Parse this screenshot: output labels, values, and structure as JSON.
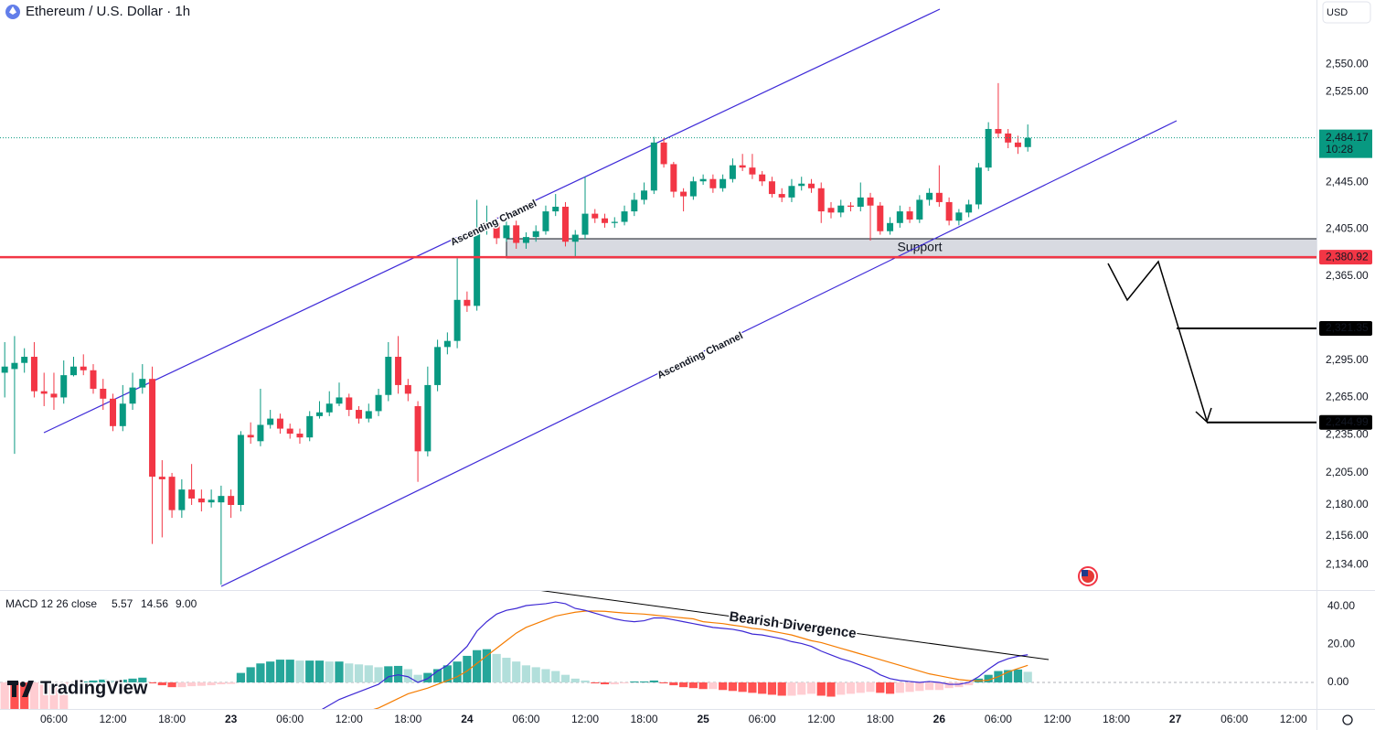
{
  "header": {
    "title": "Ethereum / U.S. Dollar · 1h",
    "currency": "USD"
  },
  "branding": "TradingView",
  "chart_data": [
    {
      "type": "candlestick",
      "log": true,
      "up_color": "#089981",
      "down_color": "#f23645",
      "xlim": [
        0.52,
        134.35
      ],
      "ylim": [
        2115,
        2609
      ],
      "xticks": [
        {
          "value": 6,
          "label": "06:00"
        },
        {
          "value": 12,
          "label": "12:00"
        },
        {
          "value": 18,
          "label": "18:00"
        },
        {
          "value": 24,
          "label": "23"
        },
        {
          "value": 30,
          "label": "06:00"
        },
        {
          "value": 36,
          "label": "12:00"
        },
        {
          "value": 42,
          "label": "18:00"
        },
        {
          "value": 48,
          "label": "24"
        },
        {
          "value": 54,
          "label": "06:00"
        },
        {
          "value": 60,
          "label": "12:00"
        },
        {
          "value": 66,
          "label": "18:00"
        },
        {
          "value": 72,
          "label": "25"
        },
        {
          "value": 78,
          "label": "06:00"
        },
        {
          "value": 84,
          "label": "12:00"
        },
        {
          "value": 90,
          "label": "18:00"
        },
        {
          "value": 96,
          "label": "26"
        },
        {
          "value": 102,
          "label": "06:00"
        },
        {
          "value": 108,
          "label": "12:00"
        },
        {
          "value": 114,
          "label": "18:00"
        },
        {
          "value": 120,
          "label": "27"
        },
        {
          "value": 126,
          "label": "06:00"
        },
        {
          "value": 132,
          "label": "12:00"
        }
      ],
      "yticks": [
        {
          "value": 2550,
          "label": "2,550.00"
        },
        {
          "value": 2525,
          "label": "2,525.00"
        },
        {
          "value": 2445,
          "label": "2,445.00"
        },
        {
          "value": 2405,
          "label": "2,405.00"
        },
        {
          "value": 2365,
          "label": "2,365.00"
        },
        {
          "value": 2295,
          "label": "2,295.00"
        },
        {
          "value": 2265,
          "label": "2,265.00"
        },
        {
          "value": 2235,
          "label": "2,235.00"
        },
        {
          "value": 2205,
          "label": "2,205.00"
        },
        {
          "value": 2180,
          "label": "2,180.00"
        },
        {
          "value": 2156,
          "label": "2,156.00"
        },
        {
          "value": 2134,
          "label": "2,134.00"
        }
      ],
      "x": [
        1,
        2,
        3,
        4,
        5,
        6,
        7,
        8,
        9,
        10,
        11,
        12,
        13,
        14,
        15,
        16,
        17,
        18,
        19,
        20,
        21,
        22,
        23,
        24,
        25,
        26,
        27,
        28,
        29,
        30,
        31,
        32,
        33,
        34,
        35,
        36,
        37,
        38,
        39,
        40,
        41,
        42,
        43,
        44,
        45,
        46,
        47,
        48,
        49,
        50,
        51,
        52,
        53,
        54,
        55,
        56,
        57,
        58,
        59,
        60,
        61,
        62,
        63,
        64,
        65,
        66,
        67,
        68,
        69,
        70,
        71,
        72,
        73,
        74,
        75,
        76,
        77,
        78,
        79,
        80,
        81,
        82,
        83,
        84,
        85,
        86,
        87,
        88,
        89,
        90,
        91,
        92,
        93,
        94,
        95,
        96,
        97,
        98,
        99,
        100,
        101,
        102,
        103,
        104,
        105
      ],
      "open": [
        2285,
        2288,
        2293,
        2298,
        2270,
        2268,
        2265,
        2283,
        2290,
        2287,
        2272,
        2264,
        2242,
        2260,
        2273,
        2280,
        2202,
        2202,
        2176,
        2192,
        2185,
        2182,
        2182,
        2187,
        2180,
        2235,
        2230,
        2243,
        2248,
        2240,
        2236,
        2233,
        2250,
        2253,
        2260,
        2265,
        2255,
        2248,
        2254,
        2267,
        2298,
        2275,
        2258,
        2222,
        2275,
        2306,
        2311,
        2345,
        2340,
        2405,
        2410,
        2397,
        2408,
        2393,
        2398,
        2403,
        2420,
        2424,
        2394,
        2400,
        2418,
        2414,
        2410,
        2411,
        2420,
        2430,
        2438,
        2480,
        2461,
        2437,
        2433,
        2446,
        2448,
        2440,
        2448,
        2460,
        2458,
        2452,
        2446,
        2435,
        2432,
        2442,
        2444,
        2440,
        2423,
        2419,
        2425,
        2424,
        2432,
        2425,
        2403,
        2410,
        2420,
        2413,
        2430,
        2436,
        2428,
        2412,
        2419,
        2426,
        2458,
        2492,
        2488,
        2480,
        2476
      ],
      "high": [
        2310,
        2315,
        2305,
        2310,
        2285,
        2285,
        2295,
        2298,
        2300,
        2292,
        2280,
        2268,
        2275,
        2285,
        2292,
        2290,
        2215,
        2205,
        2200,
        2212,
        2192,
        2192,
        2195,
        2192,
        2238,
        2245,
        2272,
        2255,
        2252,
        2244,
        2240,
        2254,
        2262,
        2270,
        2277,
        2268,
        2258,
        2260,
        2272,
        2310,
        2315,
        2280,
        2262,
        2290,
        2312,
        2318,
        2380,
        2352,
        2430,
        2425,
        2415,
        2418,
        2412,
        2402,
        2408,
        2425,
        2435,
        2428,
        2404,
        2450,
        2422,
        2418,
        2415,
        2425,
        2436,
        2445,
        2485,
        2484,
        2463,
        2440,
        2450,
        2452,
        2452,
        2452,
        2466,
        2470,
        2470,
        2455,
        2450,
        2440,
        2448,
        2450,
        2448,
        2445,
        2428,
        2430,
        2428,
        2445,
        2436,
        2428,
        2415,
        2425,
        2424,
        2434,
        2440,
        2460,
        2432,
        2422,
        2430,
        2462,
        2498,
        2533,
        2492,
        2486,
        2496
      ],
      "low": [
        2265,
        2220,
        2285,
        2265,
        2258,
        2255,
        2260,
        2282,
        2283,
        2268,
        2255,
        2238,
        2238,
        2255,
        2268,
        2150,
        2155,
        2170,
        2170,
        2180,
        2175,
        2178,
        2119,
        2170,
        2175,
        2228,
        2226,
        2240,
        2236,
        2232,
        2228,
        2230,
        2248,
        2250,
        2258,
        2250,
        2244,
        2245,
        2250,
        2262,
        2268,
        2262,
        2198,
        2218,
        2270,
        2300,
        2305,
        2335,
        2336,
        2400,
        2392,
        2394,
        2388,
        2388,
        2394,
        2400,
        2416,
        2390,
        2380,
        2396,
        2410,
        2406,
        2406,
        2408,
        2416,
        2426,
        2435,
        2458,
        2432,
        2420,
        2430,
        2443,
        2436,
        2437,
        2445,
        2455,
        2448,
        2442,
        2432,
        2428,
        2428,
        2438,
        2436,
        2410,
        2414,
        2415,
        2420,
        2420,
        2395,
        2400,
        2400,
        2406,
        2410,
        2410,
        2425,
        2424,
        2408,
        2408,
        2415,
        2422,
        2455,
        2484,
        2475,
        2470,
        2472
      ],
      "close": [
        2290,
        2293,
        2298,
        2270,
        2268,
        2265,
        2283,
        2290,
        2287,
        2272,
        2264,
        2242,
        2260,
        2273,
        2280,
        2202,
        2200,
        2176,
        2192,
        2185,
        2182,
        2184,
        2187,
        2180,
        2235,
        2233,
        2243,
        2248,
        2240,
        2236,
        2233,
        2250,
        2253,
        2260,
        2265,
        2255,
        2248,
        2254,
        2267,
        2298,
        2275,
        2268,
        2222,
        2275,
        2306,
        2311,
        2345,
        2340,
        2405,
        2410,
        2397,
        2408,
        2393,
        2398,
        2403,
        2420,
        2424,
        2394,
        2400,
        2418,
        2414,
        2410,
        2411,
        2420,
        2430,
        2438,
        2480,
        2461,
        2437,
        2433,
        2446,
        2448,
        2440,
        2448,
        2460,
        2458,
        2452,
        2446,
        2435,
        2432,
        2442,
        2444,
        2440,
        2420,
        2419,
        2425,
        2424,
        2432,
        2425,
        2403,
        2410,
        2420,
        2413,
        2430,
        2436,
        2428,
        2412,
        2419,
        2426,
        2458,
        2492,
        2488,
        2480,
        2476,
        2484.17
      ],
      "last_price": {
        "value": 2484.17,
        "label": "2,484.17",
        "countdown": "10:28",
        "color": "#089981"
      },
      "levels": [
        {
          "value": 2380.92,
          "label": "2,380.92",
          "color": "#f23645"
        },
        {
          "value": 2321.35,
          "label": "2,321.35",
          "color": "#000000"
        },
        {
          "value": 2244.99,
          "label": "2,244.99",
          "color": "#000000"
        }
      ],
      "annotations": [
        "Ascending Channel",
        "Ascending Channel",
        "Support"
      ]
    },
    {
      "type": "macd",
      "title": "MACD 12 26 close",
      "legend_values": [
        "5.57",
        "14.56",
        "9.00"
      ],
      "ylim": [
        -14,
        48.7
      ],
      "yticks": [
        {
          "value": 40,
          "label": "40.00"
        },
        {
          "value": 20,
          "label": "20.00"
        },
        {
          "value": 0,
          "label": "0.00"
        }
      ],
      "histogram": {
        "colors": {
          "rising_above": "#26a69a",
          "falling_above": "#b2dfdb",
          "falling_below": "#ff5252",
          "rising_below": "#ffcdd2"
        },
        "values": [
          -16,
          -17,
          -18,
          -17,
          -16,
          -15,
          -14,
          -1,
          0.5,
          1,
          1.5,
          1,
          1.5,
          2,
          2.5,
          -0.5,
          -1.5,
          -2.5,
          -2.5,
          -2,
          -1.8,
          -1.5,
          -1,
          -0.8,
          5,
          8,
          10,
          11,
          12,
          12,
          11.5,
          11.5,
          11.5,
          11,
          11,
          10,
          9.5,
          9,
          8,
          8.5,
          8.7,
          7,
          4,
          5,
          7,
          9,
          11,
          14,
          17,
          17.5,
          15,
          13,
          11,
          9,
          8,
          7,
          6,
          4,
          2,
          1,
          -0.5,
          -1,
          -1,
          -0.5,
          0.5,
          0.5,
          1,
          -0.5,
          -1.5,
          -2.5,
          -3,
          -3.5,
          -3.5,
          -4,
          -4.5,
          -5,
          -5.5,
          -6,
          -6.5,
          -7,
          -7,
          -6.5,
          -6,
          -7,
          -7.5,
          -6.5,
          -6,
          -5.5,
          -5,
          -5.5,
          -6,
          -5.5,
          -5,
          -4.5,
          -4,
          -4,
          -3,
          -2.5,
          -1.5,
          2,
          4,
          6,
          6.5,
          6.8,
          5.57
        ]
      },
      "macd_line": {
        "color": "#3d28d4",
        "values": [
          -18,
          -19,
          -20,
          -21,
          -21,
          -22,
          -22,
          -21,
          -21,
          -21,
          -22,
          -23,
          -23,
          -22,
          -21,
          -25,
          -29,
          -32,
          -33,
          -34,
          -35,
          -35,
          -35,
          -35,
          -32,
          -30,
          -27,
          -25,
          -23,
          -21,
          -19,
          -17,
          -15,
          -12,
          -9,
          -7,
          -5,
          -3,
          -1,
          3,
          4,
          3,
          0,
          2,
          6,
          9,
          14,
          19,
          27,
          32,
          36,
          38,
          39,
          40.5,
          41,
          41.5,
          42.4,
          41.5,
          39,
          38,
          36.5,
          35,
          33.5,
          32.5,
          32,
          32.5,
          34,
          34,
          33,
          32,
          31,
          30,
          29,
          28.5,
          28,
          27,
          25.5,
          25,
          24,
          23,
          21.5,
          20.5,
          19,
          16.5,
          14.5,
          12.5,
          11,
          9,
          7,
          4,
          2,
          1,
          0.5,
          0,
          0.5,
          0,
          -1,
          -1,
          0,
          3,
          7,
          10.5,
          12.5,
          13.8,
          14.56
        ]
      },
      "signal_line": {
        "color": "#f57c00",
        "values": [
          -20,
          -21,
          -22,
          -23,
          -24,
          -24,
          -25,
          -25,
          -26,
          -26,
          -26,
          -27,
          -27,
          -27,
          -27,
          -28,
          -29,
          -30,
          -31,
          -32,
          -33,
          -34,
          -35,
          -36,
          -36,
          -36,
          -35,
          -34,
          -33,
          -31,
          -29,
          -27,
          -25,
          -23,
          -21,
          -19,
          -17,
          -15,
          -13.5,
          -11,
          -8.5,
          -6,
          -4.5,
          -3,
          -1,
          1,
          3,
          6,
          10,
          14,
          18,
          22,
          26,
          29,
          31,
          33,
          35,
          36,
          37,
          37.6,
          37.6,
          37.5,
          37,
          36.6,
          36.3,
          36,
          35.5,
          35,
          34.5,
          34,
          33.5,
          32,
          31.5,
          31,
          30.2,
          29.5,
          28.5,
          28,
          27,
          26,
          25,
          23.5,
          22,
          21,
          19.5,
          18,
          16.5,
          15,
          13.5,
          12,
          10.5,
          9,
          7.5,
          6,
          4.5,
          3.5,
          2.5,
          1.5,
          1,
          0.8,
          1.2,
          3,
          5.5,
          7.3,
          9
        ]
      },
      "annotation": "Bearish Divergence"
    }
  ]
}
